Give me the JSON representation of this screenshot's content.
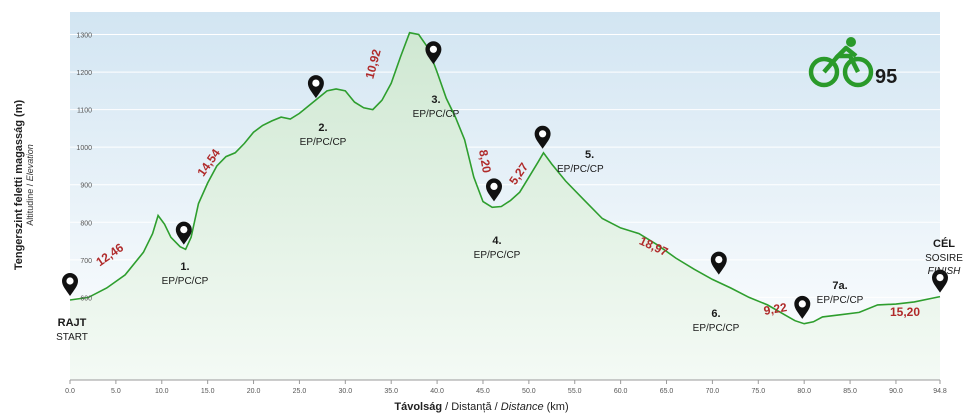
{
  "chart_data": {
    "type": "area",
    "race_number": "95",
    "xlabel": {
      "main": "Távolság",
      "sep1": " / ",
      "ro": "Distanță",
      "sep2": " / ",
      "en": "Distance",
      "unit": " (km)"
    },
    "ylabel": {
      "main": "Tengerszint feletti magasság (m)",
      "ro": "Altitudine",
      "sep": " / ",
      "en": "Elevation"
    },
    "xlim": [
      0,
      94.8
    ],
    "ylim": [
      380,
      1360
    ],
    "x_ticks": [
      "0.0",
      "5.0",
      "10.0",
      "15.0",
      "20.0",
      "25.0",
      "30.0",
      "35.0",
      "40.0",
      "45.0",
      "50.0",
      "55.0",
      "60.0",
      "65.0",
      "70.0",
      "75.0",
      "80.0",
      "85.0",
      "90.0",
      "94.8"
    ],
    "y_ticks": [
      "1300",
      "1200",
      "1100",
      "1000",
      "900",
      "800",
      "700",
      "600"
    ],
    "profile": [
      [
        0,
        593
      ],
      [
        2,
        600
      ],
      [
        4,
        625
      ],
      [
        6,
        660
      ],
      [
        8,
        720
      ],
      [
        9,
        770
      ],
      [
        9.6,
        818
      ],
      [
        10.3,
        795
      ],
      [
        11,
        760
      ],
      [
        12,
        735
      ],
      [
        12.6,
        728
      ],
      [
        13.2,
        760
      ],
      [
        14,
        850
      ],
      [
        15,
        905
      ],
      [
        16,
        950
      ],
      [
        17,
        975
      ],
      [
        18,
        985
      ],
      [
        19,
        1010
      ],
      [
        20,
        1040
      ],
      [
        21,
        1058
      ],
      [
        22,
        1070
      ],
      [
        23,
        1080
      ],
      [
        24,
        1075
      ],
      [
        25,
        1090
      ],
      [
        26,
        1110
      ],
      [
        27,
        1130
      ],
      [
        28,
        1150
      ],
      [
        29,
        1155
      ],
      [
        30,
        1150
      ],
      [
        31,
        1120
      ],
      [
        32,
        1105
      ],
      [
        33,
        1100
      ],
      [
        34,
        1125
      ],
      [
        35,
        1170
      ],
      [
        36,
        1240
      ],
      [
        37,
        1305
      ],
      [
        38,
        1300
      ],
      [
        39,
        1265
      ],
      [
        40,
        1200
      ],
      [
        41,
        1130
      ],
      [
        42,
        1080
      ],
      [
        43,
        1020
      ],
      [
        44,
        920
      ],
      [
        45,
        855
      ],
      [
        46,
        840
      ],
      [
        47,
        842
      ],
      [
        48,
        858
      ],
      [
        49,
        880
      ],
      [
        50,
        920
      ],
      [
        51,
        960
      ],
      [
        51.6,
        985
      ],
      [
        52.5,
        955
      ],
      [
        54,
        910
      ],
      [
        56,
        860
      ],
      [
        58,
        810
      ],
      [
        60,
        785
      ],
      [
        62,
        770
      ],
      [
        64,
        740
      ],
      [
        66,
        705
      ],
      [
        68,
        675
      ],
      [
        70,
        648
      ],
      [
        72,
        625
      ],
      [
        74,
        600
      ],
      [
        76,
        580
      ],
      [
        78,
        552
      ],
      [
        79,
        538
      ],
      [
        80,
        530
      ],
      [
        81,
        535
      ],
      [
        82,
        548
      ],
      [
        84,
        554
      ],
      [
        86,
        560
      ],
      [
        88,
        580
      ],
      [
        90,
        582
      ],
      [
        92,
        588
      ],
      [
        94,
        598
      ],
      [
        94.8,
        602
      ]
    ],
    "checkpoints": [
      {
        "label": "RAJT",
        "sub": "START",
        "x": 0,
        "y": 593
      },
      {
        "num": "1.",
        "label": "EP/PC/CP",
        "x": 12.4,
        "y": 730
      },
      {
        "num": "2.",
        "label": "EP/PC/CP",
        "x": 26.8,
        "y": 1120
      },
      {
        "num": "3.",
        "label": "EP/PC/CP",
        "x": 39.6,
        "y": 1210
      },
      {
        "num": "4.",
        "label": "EP/PC/CP",
        "x": 46.2,
        "y": 845
      },
      {
        "num": "5.",
        "label": "EP/PC/CP",
        "x": 51.5,
        "y": 985
      },
      {
        "num": "6.",
        "label": "EP/PC/CP",
        "x": 70.7,
        "y": 650
      },
      {
        "num": "7a.",
        "label": "EP/PC/CP",
        "x": 79.8,
        "y": 532
      },
      {
        "label": "CÉL",
        "sub": "SOSIRE",
        "sub2": "FINISH",
        "x": 94.8,
        "y": 602
      }
    ],
    "segments": [
      "12,46",
      "14,54",
      "10,92",
      "8,20",
      "5,27",
      "18,97",
      "9,22",
      "15,20"
    ],
    "colors": {
      "line": "#2e9e2e",
      "segment": "#b02a2a",
      "logo": "#2a9a2a",
      "marker": "#111111",
      "bg_top": "#d4e6f3",
      "bg_bottom": "#ffffff"
    }
  }
}
